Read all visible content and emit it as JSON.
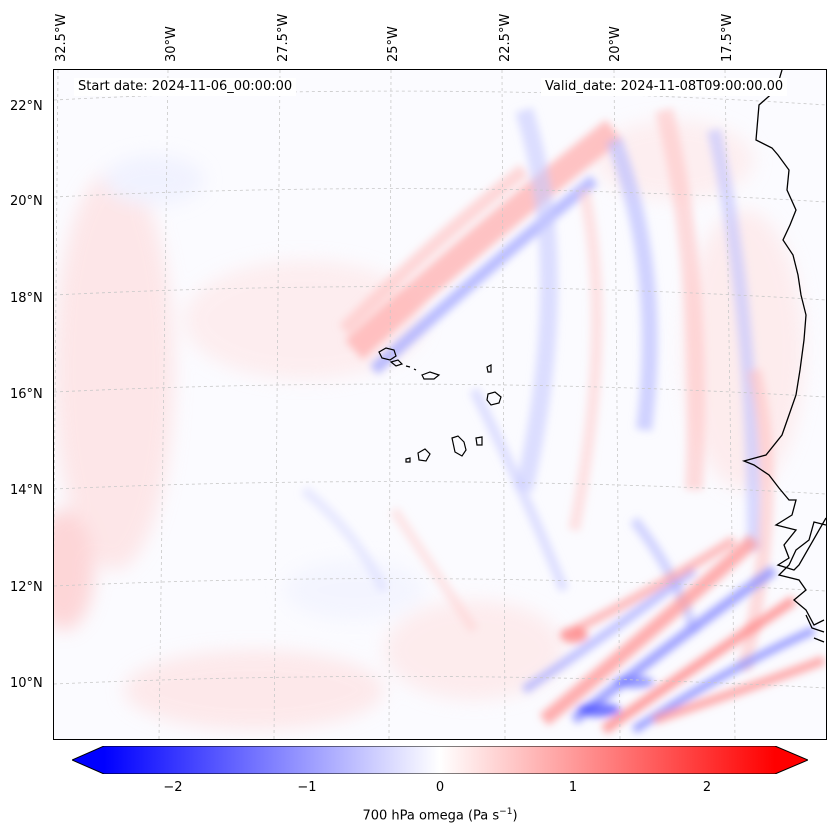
{
  "header": {
    "start_date": "Start date: 2024-11-06_00:00:00",
    "valid_date": "Valid_date: 2024-11-08T09:00:00.00"
  },
  "axes": {
    "lon_labels": [
      "32.5°W",
      "30°W",
      "27.5°W",
      "25°W",
      "22.5°W",
      "20°W",
      "17.5°W"
    ],
    "lat_labels": [
      "22°N",
      "20°N",
      "18°N",
      "16°N",
      "14°N",
      "12°N",
      "10°N"
    ]
  },
  "colorbar": {
    "title": "700 hPa omega (Pa s",
    "title_sup": "−1",
    "title_end": ")",
    "tick_labels": [
      "−2",
      "−1",
      "0",
      "1",
      "2"
    ],
    "colormap": "bwr",
    "range": [
      -2.7,
      2.7
    ],
    "extend": "both",
    "colors": {
      "low": "#0000ff",
      "mid": "#ffffff",
      "high": "#ff0000"
    }
  },
  "features": {
    "coastline_color": "#000000",
    "gridline_color": "#c8c8c8"
  }
}
